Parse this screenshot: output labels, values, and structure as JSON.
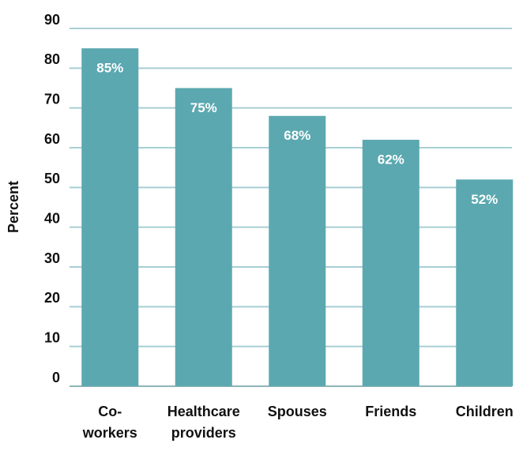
{
  "chart_data": {
    "type": "bar",
    "y_label": "Percent",
    "categories": [
      "Co-workers",
      "Healthcare providers",
      "Spouses",
      "Friends",
      "Children"
    ],
    "values": [
      85,
      75,
      68,
      62,
      52
    ],
    "value_labels": [
      "85%",
      "75%",
      "68%",
      "62%",
      "52%"
    ],
    "color": "#5ba8b0",
    "ylim": [
      0,
      90
    ],
    "yticks": [
      0,
      10,
      20,
      30,
      40,
      50,
      60,
      70,
      80,
      90
    ],
    "grid": true
  }
}
